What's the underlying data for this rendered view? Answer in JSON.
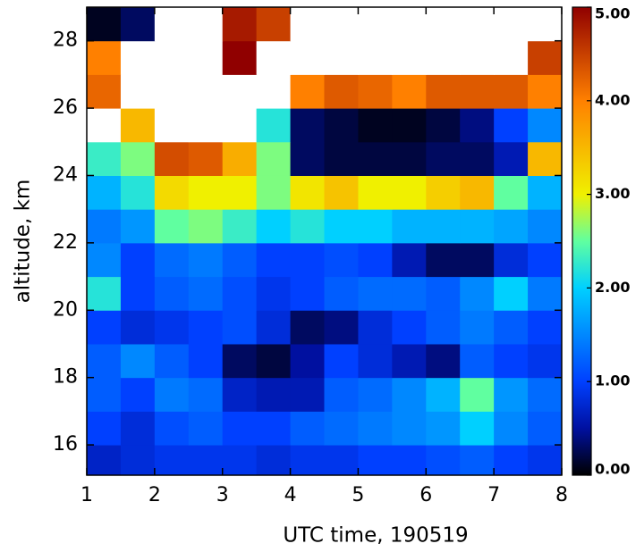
{
  "chart_data": {
    "type": "heatmap",
    "xlabel": "UTC time, 190519",
    "ylabel": "altitude, km",
    "xbins": [
      1,
      1.5,
      2,
      2.5,
      3,
      3.5,
      4,
      4.5,
      5,
      5.5,
      6,
      6.5,
      7,
      7.5,
      8
    ],
    "ybins": [
      15,
      16,
      17,
      18,
      19,
      20,
      21,
      22,
      23,
      24,
      25,
      26,
      27,
      28,
      29
    ],
    "z": [
      [
        0.7,
        0.8,
        0.9,
        0.9,
        0.9,
        0.8,
        0.9,
        0.9,
        1.0,
        1.0,
        1.1,
        1.2,
        1.0,
        0.9
      ],
      [
        1.0,
        0.8,
        1.1,
        1.2,
        1.0,
        1.0,
        1.2,
        1.3,
        1.4,
        1.5,
        1.6,
        2.0,
        1.5,
        1.2
      ],
      [
        1.2,
        1.0,
        1.4,
        1.3,
        0.7,
        0.6,
        0.6,
        1.2,
        1.3,
        1.5,
        1.8,
        2.5,
        1.6,
        1.3
      ],
      [
        1.2,
        1.5,
        1.2,
        1.0,
        0.3,
        0.2,
        0.5,
        1.0,
        0.8,
        0.6,
        0.4,
        1.2,
        1.0,
        0.9
      ],
      [
        1.0,
        0.8,
        0.9,
        1.0,
        1.1,
        0.8,
        0.3,
        0.4,
        0.8,
        1.0,
        1.2,
        1.4,
        1.2,
        1.0
      ],
      [
        2.2,
        1.0,
        1.2,
        1.3,
        1.1,
        0.9,
        1.0,
        1.2,
        1.3,
        1.3,
        1.2,
        1.5,
        2.0,
        1.4
      ],
      [
        1.5,
        1.0,
        1.3,
        1.4,
        1.2,
        1.0,
        1.0,
        1.1,
        1.0,
        0.6,
        0.3,
        0.3,
        0.8,
        1.0
      ],
      [
        1.4,
        1.6,
        2.5,
        2.6,
        2.3,
        2.0,
        2.2,
        2.0,
        2.0,
        1.8,
        1.8,
        1.8,
        1.7,
        1.5
      ],
      [
        1.8,
        2.2,
        3.2,
        3.0,
        3.0,
        2.6,
        3.1,
        3.4,
        3.0,
        3.0,
        3.3,
        3.5,
        2.5,
        1.8
      ],
      [
        2.3,
        2.6,
        4.4,
        4.3,
        3.6,
        2.6,
        0.3,
        0.2,
        0.2,
        0.2,
        0.3,
        0.3,
        0.6,
        3.5
      ],
      [
        6,
        3.5,
        6,
        6,
        6,
        2.2,
        0.3,
        0.2,
        0.1,
        0.1,
        0.2,
        0.4,
        1.0,
        1.5
      ],
      [
        4.2,
        6,
        6,
        6,
        6,
        6,
        4.0,
        4.3,
        4.2,
        4.0,
        4.3,
        4.3,
        4.3,
        4.0
      ],
      [
        4.0,
        6,
        6,
        6,
        5.0,
        6,
        6,
        6,
        6,
        6,
        6,
        6,
        6,
        4.5
      ],
      [
        0.1,
        0.3,
        6,
        6,
        4.8,
        4.5,
        6,
        6,
        6,
        6,
        6,
        6,
        6,
        6
      ]
    ],
    "xlim": [
      1,
      8
    ],
    "xticks": [
      1,
      2,
      3,
      4,
      5,
      6,
      7,
      8
    ],
    "ylim": [
      15.1,
      29
    ],
    "yticks": [
      16,
      18,
      20,
      22,
      24,
      26,
      28
    ],
    "zlim": [
      0,
      5
    ],
    "zticks": [
      {
        "value": 0,
        "label": "0.00"
      },
      {
        "value": 1,
        "label": "1.00"
      },
      {
        "value": 2,
        "label": "2.00"
      },
      {
        "value": 3,
        "label": "3.00"
      },
      {
        "value": 4,
        "label": "4.00"
      },
      {
        "value": 5,
        "label": "5.00"
      }
    ],
    "colorscale": [
      [
        0,
        "#000000"
      ],
      [
        0.5,
        "#0010a0"
      ],
      [
        1,
        "#0040ff"
      ],
      [
        2,
        "#00d0ff"
      ],
      [
        2.5,
        "#60ffa0"
      ],
      [
        3,
        "#f0f000"
      ],
      [
        4,
        "#ff8000"
      ],
      [
        5,
        "#900000"
      ]
    ],
    "over_color": "#ffffff"
  }
}
